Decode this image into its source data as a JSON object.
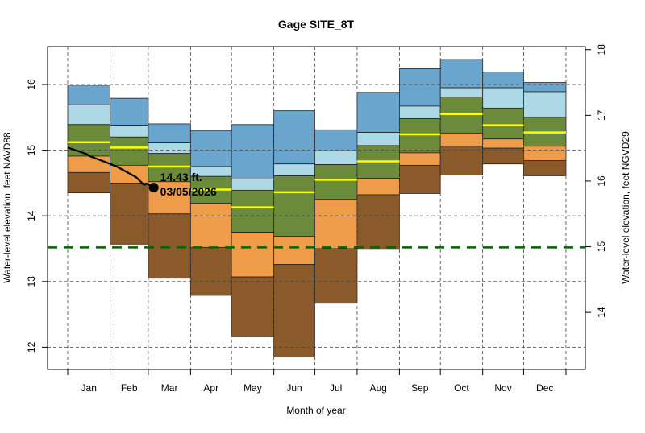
{
  "chart_data": {
    "type": "area",
    "title": "Gage SITE_8T",
    "xlabel": "Month of year",
    "ylabel": "Water-level elevation, feet NAVD88",
    "ylabel_right": "Water-level elevation, feet NGVD29",
    "right_axis_offset": 1.47,
    "ylim": [
      11.66,
      16.58
    ],
    "yticks": [
      12,
      13,
      14,
      15,
      16
    ],
    "yticks_right": [
      14,
      15,
      16,
      17,
      18
    ],
    "grid": true,
    "categories": [
      "Jan",
      "Feb",
      "Mar",
      "Apr",
      "May",
      "Jun",
      "Jul",
      "Aug",
      "Sep",
      "Oct",
      "Nov",
      "Dec"
    ],
    "month_days": [
      31,
      28,
      31,
      30,
      31,
      30,
      31,
      31,
      30,
      31,
      30,
      31
    ],
    "series": [
      {
        "key": "max",
        "values": [
          15.99,
          15.79,
          15.4,
          15.3,
          15.39,
          15.6,
          15.31,
          15.88,
          16.24,
          16.38,
          16.19,
          16.03
        ]
      },
      {
        "key": "p90",
        "values": [
          15.69,
          15.38,
          15.11,
          14.75,
          14.56,
          14.79,
          14.99,
          15.27,
          15.67,
          15.95,
          15.95,
          15.89
        ]
      },
      {
        "key": "p75",
        "values": [
          15.39,
          15.2,
          14.95,
          14.6,
          14.39,
          14.61,
          14.78,
          15.07,
          15.48,
          15.81,
          15.64,
          15.5
        ]
      },
      {
        "key": "median",
        "values": [
          15.12,
          15.04,
          14.75,
          14.4,
          14.13,
          14.36,
          14.55,
          14.83,
          15.24,
          15.55,
          15.38,
          15.27
        ]
      },
      {
        "key": "p25",
        "values": [
          14.91,
          14.77,
          14.52,
          14.19,
          13.75,
          13.69,
          14.25,
          14.57,
          14.96,
          15.26,
          15.17,
          15.06
        ]
      },
      {
        "key": "p10",
        "values": [
          14.66,
          14.5,
          14.03,
          13.52,
          13.07,
          13.26,
          13.5,
          14.32,
          14.77,
          15.06,
          15.03,
          14.84
        ]
      },
      {
        "key": "min",
        "values": [
          14.35,
          13.57,
          13.05,
          12.79,
          12.16,
          11.85,
          12.67,
          13.49,
          14.34,
          14.62,
          14.79,
          14.61
        ]
      }
    ],
    "band_colors": {
      "p90_max": "#6aa5cd",
      "p75_p90": "#add8e6",
      "p25_p75": "#6b8a3a",
      "p10_p25": "#ee9b4a",
      "min_p10": "#8a5a2b",
      "median": "#ffff00"
    },
    "reference_line": {
      "value": 13.52,
      "color": "#006400",
      "style": "dashed"
    },
    "current_year": {
      "dates": [
        "01/01",
        "01/15",
        "01/17",
        "01/31",
        "02/06",
        "02/20",
        "02/26",
        "02/28",
        "03/05"
      ],
      "values": [
        15.04,
        14.94,
        14.91,
        14.8,
        14.75,
        14.59,
        14.47,
        14.49,
        14.43
      ],
      "color": "#000000"
    },
    "annotation": {
      "value_label": "14.43 ft.",
      "date_label": "03/05/2026"
    }
  }
}
